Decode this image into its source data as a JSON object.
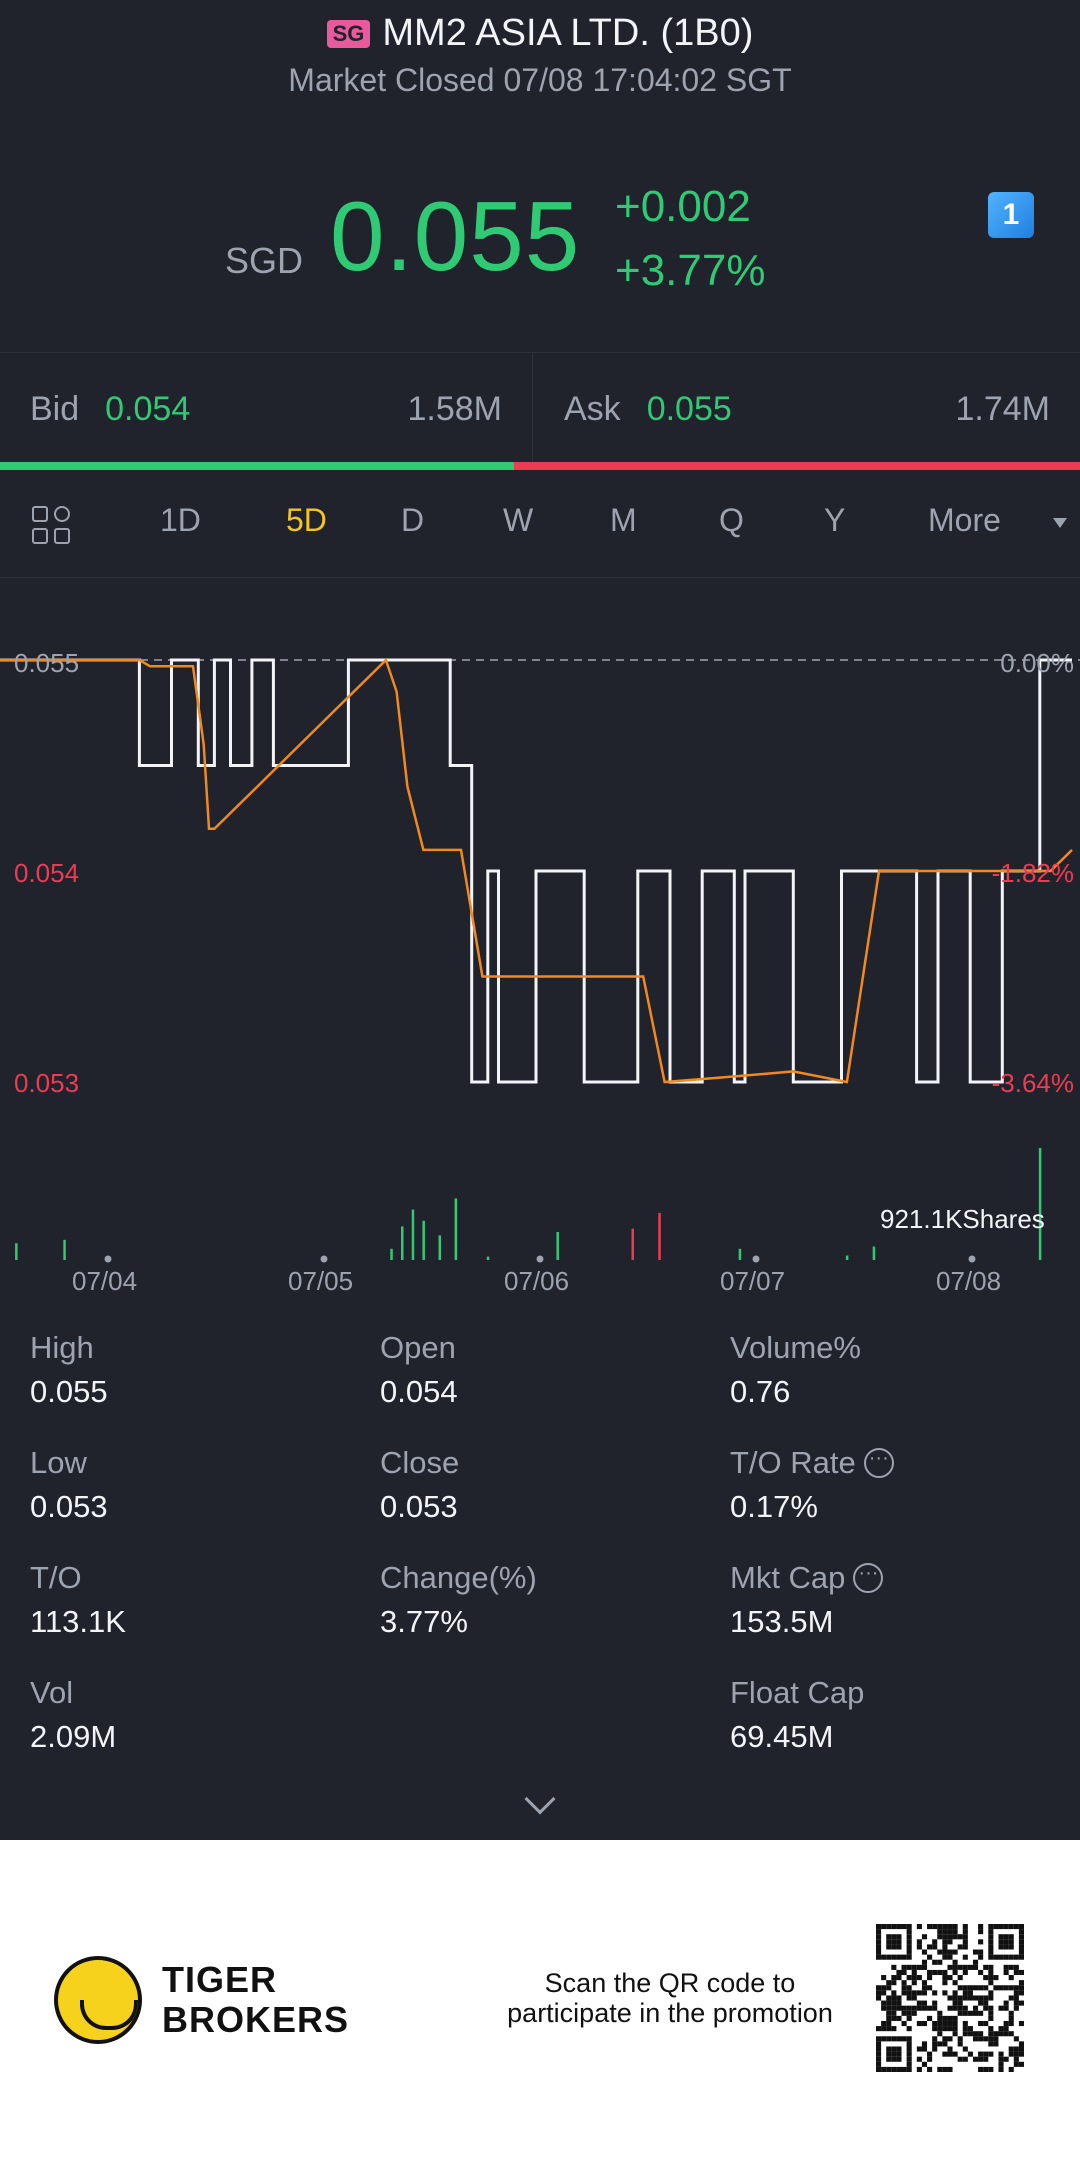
{
  "header": {
    "badge": "SG",
    "title": "MM2 ASIA LTD. (1B0)",
    "status": "Market Closed 07/08 17:04:02 SGT",
    "currency": "SGD",
    "price": "0.055",
    "change_abs": "+0.002",
    "change_pct": "+3.77%",
    "flash_icon": "flash-icon",
    "flash_label": "1"
  },
  "bidask": {
    "bid_label": "Bid",
    "bid_price": "0.054",
    "bid_size": "1.58M",
    "ask_label": "Ask",
    "ask_price": "0.055",
    "ask_size": "1.74M",
    "bid_ratio": 0.476,
    "colors": {
      "bid": "#2fca73",
      "ask": "#ec3b52"
    }
  },
  "tabs": {
    "items": [
      "1D",
      "5D",
      "D",
      "W",
      "M",
      "Q",
      "Y",
      "More"
    ],
    "active": "5D",
    "grid_icon": "grid-icon",
    "dropdown_icon": "dropdown-arrow-icon"
  },
  "chart_data": {
    "type": "line",
    "y_left_ticks": [
      "0.055",
      "0.054",
      "0.053"
    ],
    "y_right_ticks": [
      "0.00%",
      "-1.82%",
      "-3.64%"
    ],
    "ylim": [
      0.053,
      0.055
    ],
    "x_ticks": [
      "07/04",
      "07/05",
      "07/06",
      "07/07",
      "07/08"
    ],
    "volume_label": "921.1KShares",
    "series": [
      {
        "color": "#f3f4f8",
        "x": [
          0,
          0.13,
          0.13,
          0.16,
          0.16,
          0.185,
          0.185,
          0.2,
          0.2,
          0.215,
          0.215,
          0.235,
          0.235,
          0.255,
          0.255,
          0.325,
          0.325,
          0.42,
          0.42,
          0.44,
          0.44,
          0.455,
          0.455,
          0.465,
          0.465,
          0.5,
          0.5,
          0.545,
          0.545,
          0.595,
          0.595,
          0.625,
          0.625,
          0.655,
          0.655,
          0.685,
          0.685,
          0.695,
          0.695,
          0.74,
          0.74,
          0.785,
          0.785,
          0.855,
          0.855,
          0.875,
          0.875,
          0.905,
          0.905,
          0.935,
          0.935,
          0.97,
          0.97,
          1.0
        ],
        "values": [
          0.055,
          0.055,
          0.0545,
          0.0545,
          0.055,
          0.055,
          0.0545,
          0.0545,
          0.055,
          0.055,
          0.0545,
          0.0545,
          0.055,
          0.055,
          0.0545,
          0.0545,
          0.055,
          0.055,
          0.0545,
          0.0545,
          0.053,
          0.053,
          0.054,
          0.054,
          0.053,
          0.053,
          0.054,
          0.054,
          0.053,
          0.053,
          0.054,
          0.054,
          0.053,
          0.053,
          0.054,
          0.054,
          0.053,
          0.053,
          0.054,
          0.054,
          0.053,
          0.053,
          0.054,
          0.054,
          0.053,
          0.053,
          0.054,
          0.054,
          0.053,
          0.053,
          0.054,
          0.054,
          0.055,
          0.055
        ]
      },
      {
        "color": "#f0891e",
        "x": [
          0,
          0.13,
          0.14,
          0.18,
          0.19,
          0.195,
          0.2,
          0.36,
          0.37,
          0.38,
          0.395,
          0.43,
          0.45,
          0.6,
          0.62,
          0.67,
          0.74,
          0.79,
          0.82,
          0.98,
          1.0
        ],
        "values": [
          0.055,
          0.055,
          0.05497,
          0.05497,
          0.0546,
          0.0542,
          0.0542,
          0.055,
          0.05485,
          0.0544,
          0.0541,
          0.0541,
          0.0535,
          0.0535,
          0.053,
          0.05302,
          0.05305,
          0.053,
          0.054,
          0.054,
          0.0541
        ]
      }
    ],
    "volume": [
      {
        "x": 0.015,
        "v": 0.15,
        "c": "#2fca73"
      },
      {
        "x": 0.06,
        "v": 0.18,
        "c": "#2fca73"
      },
      {
        "x": 0.365,
        "v": 0.1,
        "c": "#2fca73"
      },
      {
        "x": 0.375,
        "v": 0.3,
        "c": "#2fca73"
      },
      {
        "x": 0.385,
        "v": 0.45,
        "c": "#2fca73"
      },
      {
        "x": 0.395,
        "v": 0.35,
        "c": "#2fca73"
      },
      {
        "x": 0.41,
        "v": 0.22,
        "c": "#2fca73"
      },
      {
        "x": 0.425,
        "v": 0.55,
        "c": "#2fca73"
      },
      {
        "x": 0.455,
        "v": 0.03,
        "c": "#2fca73"
      },
      {
        "x": 0.52,
        "v": 0.25,
        "c": "#2fca73"
      },
      {
        "x": 0.59,
        "v": 0.28,
        "c": "#ec3b52"
      },
      {
        "x": 0.615,
        "v": 0.42,
        "c": "#ec3b52"
      },
      {
        "x": 0.69,
        "v": 0.1,
        "c": "#2fca73"
      },
      {
        "x": 0.79,
        "v": 0.04,
        "c": "#2fca73"
      },
      {
        "x": 0.815,
        "v": 0.12,
        "c": "#2fca73"
      },
      {
        "x": 0.97,
        "v": 1.0,
        "c": "#2fca73"
      }
    ]
  },
  "stats": [
    {
      "label": "High",
      "value": "0.055"
    },
    {
      "label": "Open",
      "value": "0.054"
    },
    {
      "label": "Volume%",
      "value": "0.76"
    },
    {
      "label": "Low",
      "value": "0.053"
    },
    {
      "label": "Close",
      "value": "0.053"
    },
    {
      "label": "T/O Rate",
      "value": "0.17%",
      "info_icon": "more-info-icon"
    },
    {
      "label": "T/O",
      "value": "113.1K"
    },
    {
      "label": "Change(%)",
      "value": "3.77%"
    },
    {
      "label": "Mkt Cap",
      "value": "153.5M",
      "info_icon": "more-info-icon"
    },
    {
      "label": "Vol",
      "value": "2.09M"
    },
    {
      "label": "Float Cap",
      "value": "69.45M"
    }
  ],
  "expand_icon": "chevron-down-icon",
  "promo": {
    "brand_line1": "TIGER",
    "brand_line2": "BROKERS",
    "text_line1": "Scan the QR code to",
    "text_line2": "participate in the promotion",
    "logo_icon": "tiger-logo-icon",
    "qr_icon": "qr-code-icon"
  }
}
